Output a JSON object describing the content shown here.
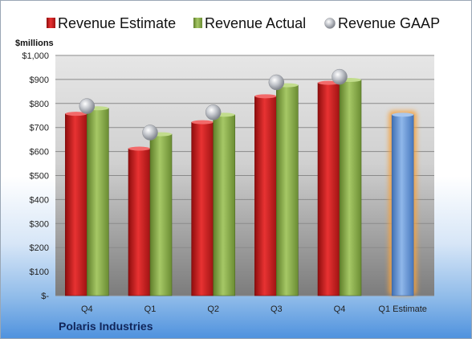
{
  "company": "Polaris Industries",
  "chart_data": {
    "type": "bar",
    "categories": [
      "Q4",
      "Q1",
      "Q2",
      "Q3",
      "Q4",
      "Q1 Estimate"
    ],
    "series": [
      {
        "name": "Revenue Estimate",
        "color": "#d42020",
        "values": [
          757,
          612,
          722,
          830,
          886,
          null
        ]
      },
      {
        "name": "Revenue Actual",
        "color": "#8db24a",
        "values": [
          780,
          672,
          753,
          876,
          898,
          null
        ]
      },
      {
        "name": "Revenue GAAP",
        "color": "#b4b8bf",
        "values": [
          789,
          679,
          763,
          888,
          911,
          null
        ]
      },
      {
        "name": "Q1 Estimate",
        "color": "#5b8fd4",
        "values": [
          null,
          null,
          null,
          null,
          null,
          753
        ]
      }
    ],
    "legend": [
      "Revenue Estimate",
      "Revenue Actual",
      "Revenue GAAP"
    ],
    "legend_position": "top",
    "ylabel": "$millions",
    "ylim": [
      0,
      1000
    ],
    "yticks": [
      0,
      100,
      200,
      300,
      400,
      500,
      600,
      700,
      800,
      900,
      1000
    ],
    "ytick_labels": [
      "$-",
      "$100",
      "$200",
      "$300",
      "$400",
      "$500",
      "$600",
      "$700",
      "$800",
      "$900",
      "$1,000"
    ],
    "grid": true
  }
}
